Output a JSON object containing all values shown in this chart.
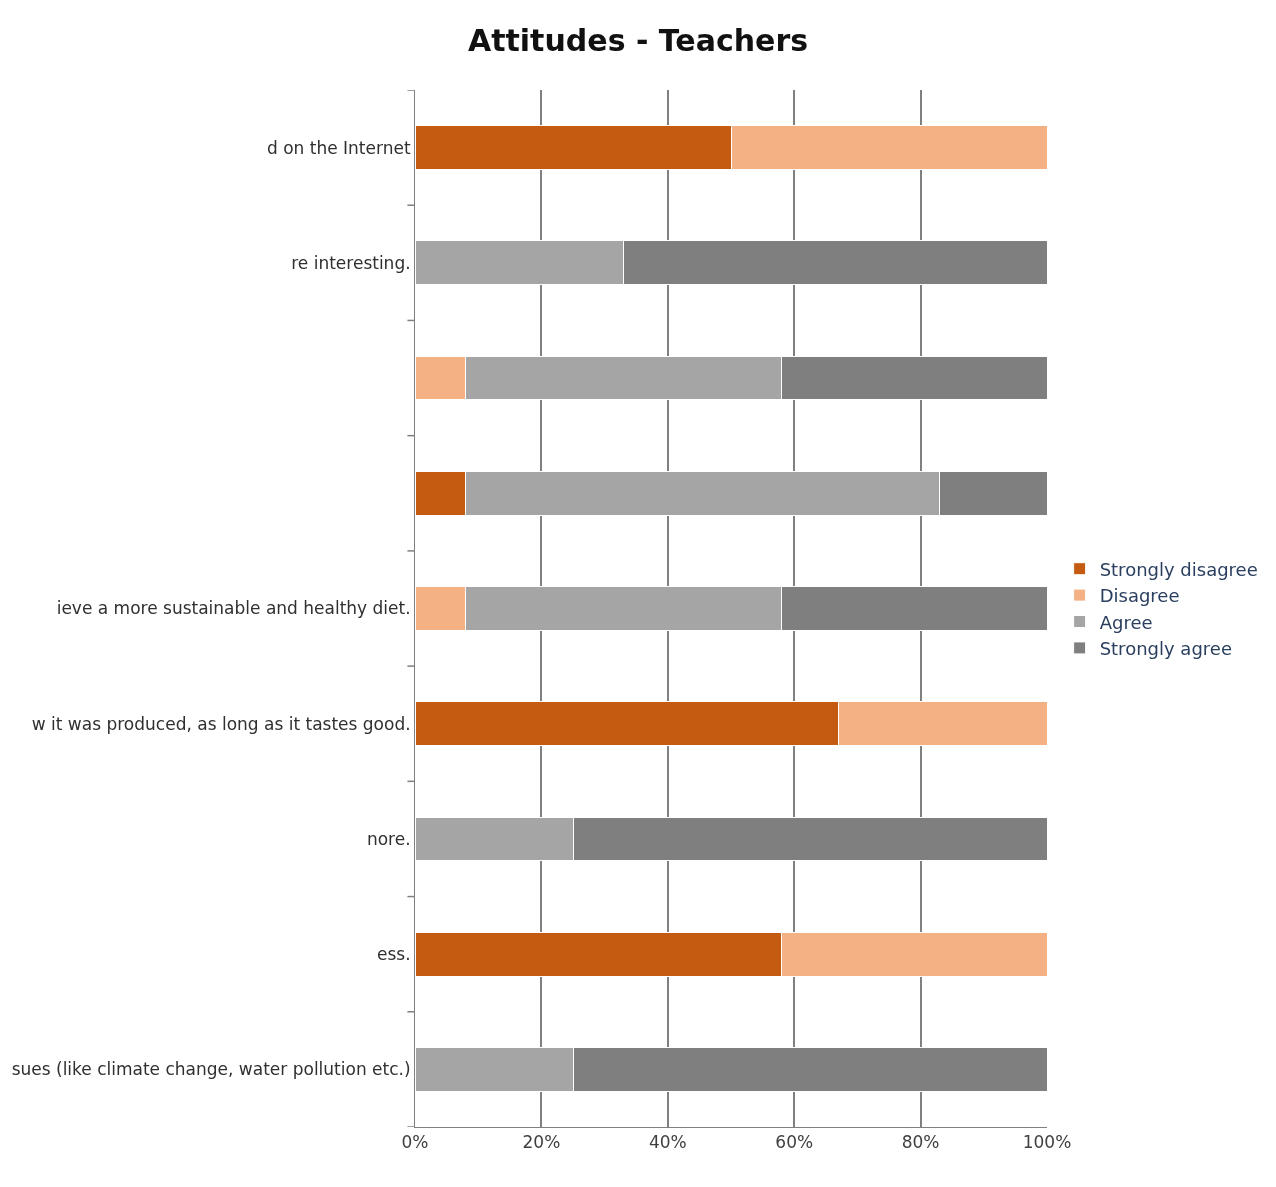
{
  "chart_data": {
    "type": "bar",
    "title": "Attitudes - Teachers",
    "orientation": "horizontal",
    "stacked": true,
    "categories": [
      "d on the Internet",
      "re interesting.",
      null,
      null,
      "ieve a more sustainable and healthy diet.",
      "w it was produced, as long as it tastes good.",
      "nore.",
      "ess.",
      "sues (like climate change, water pollution etc.)"
    ],
    "series": [
      {
        "name": "Strongly disagree",
        "color": "#c55a11",
        "values": [
          50,
          null,
          null,
          8,
          null,
          67,
          null,
          58,
          null
        ]
      },
      {
        "name": "Disagree",
        "color": "#f4b183",
        "values": [
          50,
          null,
          8,
          null,
          8,
          33,
          null,
          42,
          null
        ]
      },
      {
        "name": "Agree",
        "color": "#a5a5a5",
        "values": [
          null,
          33,
          50,
          75,
          50,
          null,
          25,
          null,
          25
        ]
      },
      {
        "name": "Strongly agree",
        "color": "#7f7f7f",
        "values": [
          null,
          67,
          42,
          17,
          42,
          null,
          75,
          null,
          75
        ]
      }
    ],
    "xlim": [
      0,
      100
    ],
    "xticks": [
      {
        "value": 0,
        "label": "0%"
      },
      {
        "value": 20,
        "label": "20%"
      },
      {
        "value": 40,
        "label": "40%"
      },
      {
        "value": 60,
        "label": "60%"
      },
      {
        "value": 80,
        "label": "80%"
      },
      {
        "value": 100,
        "label": "100%"
      }
    ],
    "grid": "x",
    "legend": "right"
  }
}
